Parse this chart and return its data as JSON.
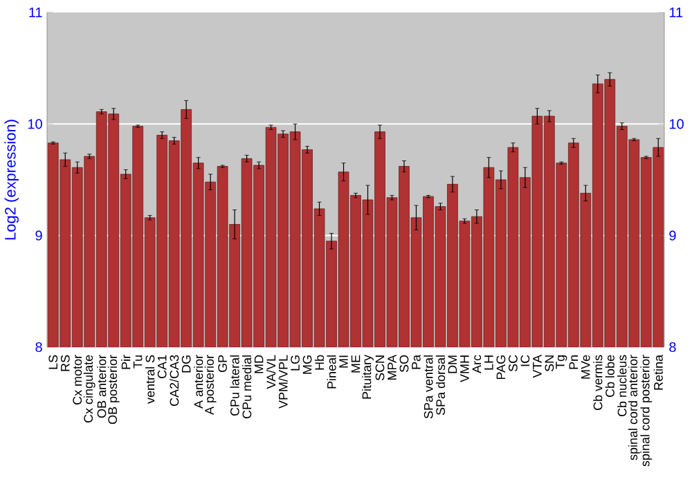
{
  "chart_data": {
    "type": "bar",
    "ylabel": "Log2 (expression)",
    "categories": [
      "LS",
      "RS",
      "Cx motor",
      "Cx cingulate",
      "OB anterior",
      "OB posterior",
      "Pir",
      "Tu",
      "ventral S",
      "CA1",
      "CA2/CA3",
      "DG",
      "A anterior",
      "A posterior",
      "GP",
      "CPu lateral",
      "CPu medial",
      "MD",
      "VA/VL",
      "VPM/VPL",
      "LG",
      "MG",
      "Hb",
      "Pineal",
      "MI",
      "ME",
      "Pituitary",
      "SCN",
      "MPA",
      "SO",
      "Pa",
      "SPa ventral",
      "SPa dorsal",
      "DM",
      "VMH",
      "Arc",
      "LH",
      "PAG",
      "SC",
      "IC",
      "VTA",
      "SN",
      "Tg",
      "Pn",
      "MVe",
      "Cb vermis",
      "Cb lobe",
      "Cb nucleus",
      "spinal cord anterior",
      "spinal cord posterior",
      "Retina"
    ],
    "values": [
      9.83,
      9.68,
      9.61,
      9.71,
      10.11,
      10.09,
      9.55,
      9.98,
      9.16,
      9.9,
      9.85,
      10.13,
      9.65,
      9.48,
      9.62,
      9.1,
      9.69,
      9.63,
      9.97,
      9.91,
      9.93,
      9.77,
      9.24,
      8.95,
      9.57,
      9.36,
      9.32,
      9.93,
      9.34,
      9.62,
      9.16,
      9.35,
      9.26,
      9.46,
      9.13,
      9.17,
      9.61,
      9.5,
      9.79,
      9.52,
      10.07,
      10.07,
      9.65,
      9.83,
      9.38,
      10.36,
      10.4,
      9.98,
      9.86,
      9.7,
      9.79
    ],
    "errors": [
      0.01,
      0.06,
      0.05,
      0.02,
      0.02,
      0.05,
      0.04,
      0.01,
      0.02,
      0.03,
      0.03,
      0.08,
      0.05,
      0.07,
      0.01,
      0.13,
      0.03,
      0.03,
      0.02,
      0.03,
      0.07,
      0.03,
      0.06,
      0.07,
      0.08,
      0.02,
      0.13,
      0.06,
      0.02,
      0.05,
      0.11,
      0.01,
      0.03,
      0.07,
      0.02,
      0.06,
      0.09,
      0.08,
      0.04,
      0.09,
      0.07,
      0.05,
      0.01,
      0.04,
      0.07,
      0.08,
      0.06,
      0.03,
      0.01,
      0.01,
      0.08
    ],
    "color": "#b03232",
    "ylim": [
      8,
      11
    ],
    "yticks": [
      8,
      9,
      10,
      11
    ],
    "y2lim": [
      8,
      11
    ],
    "y2ticks": [
      8,
      9,
      10,
      11
    ],
    "grid": "y"
  }
}
